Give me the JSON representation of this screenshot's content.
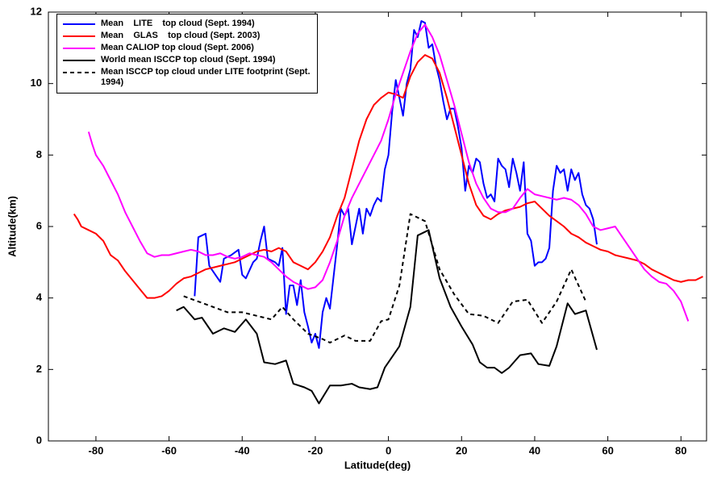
{
  "chart_data": {
    "type": "line",
    "xlabel": "Latitude(deg)",
    "ylabel": "Altitude(km)",
    "xlim": [
      -93,
      87
    ],
    "ylim": [
      0,
      12
    ],
    "xticks": [
      -80,
      -60,
      -40,
      -20,
      0,
      20,
      40,
      60,
      80
    ],
    "yticks": [
      0,
      2,
      4,
      6,
      8,
      10,
      12
    ],
    "legend": "upper-left",
    "series": [
      {
        "name": "Mean    LITE    top cloud (Sept. 1994)",
        "color": "#0000ff",
        "x": [
          -53,
          -52,
          -50,
          -49,
          -47,
          -46,
          -45,
          -43,
          -41,
          -40,
          -39,
          -37,
          -36,
          -35,
          -34,
          -33,
          -31,
          -30,
          -29,
          -28,
          -27,
          -26,
          -25,
          -24,
          -23,
          -22,
          -21,
          -20,
          -19,
          -18,
          -17,
          -16,
          -15,
          -14,
          -13,
          -12,
          -11,
          -10,
          -9,
          -8,
          -7,
          -6,
          -5,
          -4,
          -3,
          -2,
          -1,
          0,
          1,
          2,
          3,
          4,
          5,
          6,
          7,
          8,
          9,
          10,
          11,
          12,
          13,
          14,
          15,
          16,
          17,
          18,
          19,
          20,
          21,
          22,
          23,
          24,
          25,
          26,
          27,
          28,
          29,
          30,
          31,
          32,
          33,
          34,
          35,
          36,
          37,
          38,
          39,
          40,
          41,
          42,
          43,
          44,
          45,
          46,
          47,
          48,
          49,
          50,
          51,
          52,
          53,
          54,
          55,
          56,
          57
        ],
        "values": [
          4.05,
          5.7,
          5.8,
          4.9,
          4.6,
          4.45,
          5.1,
          5.2,
          5.35,
          4.65,
          4.55,
          5.0,
          5.1,
          5.6,
          6.0,
          5.1,
          5.0,
          4.9,
          5.4,
          3.55,
          4.35,
          4.35,
          3.8,
          4.5,
          3.6,
          3.2,
          2.75,
          3.0,
          2.6,
          3.6,
          4.0,
          3.7,
          4.6,
          5.5,
          6.5,
          6.3,
          6.5,
          5.5,
          6.0,
          6.5,
          5.8,
          6.5,
          6.3,
          6.6,
          6.8,
          6.7,
          7.6,
          8.0,
          9.2,
          10.1,
          9.6,
          9.1,
          10.0,
          10.4,
          11.5,
          11.3,
          11.75,
          11.7,
          11.0,
          11.1,
          10.5,
          10.1,
          9.5,
          9.0,
          9.3,
          9.3,
          8.8,
          8.2,
          7.0,
          7.7,
          7.5,
          7.9,
          7.8,
          7.2,
          6.8,
          6.9,
          6.7,
          7.9,
          7.7,
          7.6,
          7.1,
          7.9,
          7.5,
          7.0,
          7.8,
          5.8,
          5.6,
          4.9,
          5.0,
          5.0,
          5.1,
          5.4,
          7.0,
          7.7,
          7.5,
          7.6,
          7.0,
          7.6,
          7.3,
          7.5,
          6.9,
          6.6,
          6.5,
          6.2,
          5.5
        ]
      },
      {
        "name": "Mean    GLAS    top cloud (Sept. 2003)",
        "color": "#ff0000",
        "x": [
          -86,
          -85,
          -84,
          -82,
          -80,
          -78,
          -76,
          -74,
          -72,
          -70,
          -68,
          -66,
          -64,
          -62,
          -60,
          -58,
          -56,
          -54,
          -52,
          -50,
          -48,
          -46,
          -44,
          -42,
          -40,
          -38,
          -36,
          -34,
          -32,
          -30,
          -28,
          -26,
          -24,
          -22,
          -20,
          -18,
          -16,
          -14,
          -12,
          -10,
          -8,
          -6,
          -4,
          -2,
          0,
          2,
          4,
          6,
          8,
          10,
          12,
          14,
          16,
          18,
          20,
          22,
          24,
          26,
          28,
          30,
          32,
          34,
          36,
          38,
          40,
          42,
          44,
          46,
          48,
          50,
          52,
          54,
          56,
          58,
          60,
          62,
          64,
          66,
          68,
          70,
          72,
          74,
          76,
          78,
          80,
          82,
          84,
          86
        ],
        "values": [
          6.35,
          6.2,
          6.0,
          5.9,
          5.8,
          5.6,
          5.2,
          5.05,
          4.75,
          4.5,
          4.25,
          4.0,
          4.0,
          4.05,
          4.2,
          4.4,
          4.55,
          4.6,
          4.7,
          4.8,
          4.85,
          4.9,
          4.95,
          5.0,
          5.1,
          5.2,
          5.3,
          5.35,
          5.3,
          5.4,
          5.3,
          5.0,
          4.9,
          4.8,
          5.0,
          5.3,
          5.7,
          6.3,
          6.8,
          7.6,
          8.4,
          9.0,
          9.4,
          9.6,
          9.75,
          9.7,
          9.6,
          10.2,
          10.6,
          10.8,
          10.7,
          10.3,
          9.6,
          8.8,
          8.0,
          7.2,
          6.6,
          6.3,
          6.2,
          6.35,
          6.45,
          6.5,
          6.55,
          6.65,
          6.7,
          6.5,
          6.3,
          6.15,
          6.0,
          5.8,
          5.7,
          5.55,
          5.45,
          5.35,
          5.3,
          5.2,
          5.15,
          5.1,
          5.05,
          4.95,
          4.8,
          4.7,
          4.6,
          4.5,
          4.45,
          4.5,
          4.5,
          4.6
        ]
      },
      {
        "name": "Mean CALIOP top cloud (Sept. 2006)",
        "color": "#ff00ff",
        "x": [
          -82,
          -81,
          -80,
          -78,
          -76,
          -74,
          -72,
          -70,
          -68,
          -66,
          -64,
          -62,
          -60,
          -58,
          -56,
          -54,
          -52,
          -50,
          -48,
          -46,
          -44,
          -42,
          -40,
          -38,
          -36,
          -34,
          -32,
          -30,
          -28,
          -26,
          -24,
          -22,
          -20,
          -18,
          -16,
          -14,
          -12,
          -10,
          -8,
          -6,
          -4,
          -2,
          0,
          2,
          4,
          6,
          8,
          10,
          12,
          14,
          16,
          18,
          20,
          22,
          24,
          26,
          28,
          30,
          32,
          34,
          36,
          38,
          40,
          42,
          44,
          46,
          48,
          50,
          52,
          54,
          56,
          58,
          60,
          62,
          64,
          66,
          68,
          70,
          72,
          74,
          76,
          78,
          80,
          82
        ],
        "values": [
          8.65,
          8.3,
          8.0,
          7.7,
          7.3,
          6.9,
          6.4,
          6.0,
          5.6,
          5.25,
          5.15,
          5.2,
          5.2,
          5.25,
          5.3,
          5.35,
          5.3,
          5.2,
          5.2,
          5.25,
          5.15,
          5.1,
          5.15,
          5.25,
          5.2,
          5.15,
          5.0,
          4.8,
          4.6,
          4.45,
          4.35,
          4.25,
          4.3,
          4.5,
          5.0,
          5.6,
          6.3,
          6.8,
          7.2,
          7.6,
          8.0,
          8.4,
          9.0,
          9.7,
          10.3,
          10.9,
          11.4,
          11.65,
          11.3,
          10.8,
          10.1,
          9.4,
          8.6,
          7.8,
          7.2,
          6.8,
          6.5,
          6.4,
          6.4,
          6.5,
          6.8,
          7.05,
          6.9,
          6.85,
          6.8,
          6.75,
          6.8,
          6.75,
          6.6,
          6.35,
          6.0,
          5.9,
          5.95,
          6.0,
          5.7,
          5.4,
          5.1,
          4.8,
          4.6,
          4.45,
          4.4,
          4.2,
          3.9,
          3.35
        ]
      },
      {
        "name": "World mean ISCCP top cloud (Sept. 1994)",
        "color": "#000000",
        "x": [
          -58,
          -56,
          -53,
          -51,
          -48,
          -45,
          -42,
          -39,
          -36,
          -34,
          -31,
          -28,
          -26,
          -23,
          -21,
          -19,
          -16,
          -13,
          -10,
          -8,
          -5,
          -3,
          -1,
          1,
          3,
          6,
          8,
          11,
          14,
          17,
          20,
          23,
          25,
          27,
          29,
          31,
          33,
          36,
          39,
          41,
          44,
          46,
          49,
          51,
          54,
          57
        ],
        "values": [
          3.65,
          3.75,
          3.4,
          3.45,
          3.0,
          3.15,
          3.05,
          3.4,
          3.0,
          2.2,
          2.15,
          2.25,
          1.6,
          1.5,
          1.4,
          1.05,
          1.55,
          1.55,
          1.6,
          1.5,
          1.45,
          1.5,
          2.05,
          2.35,
          2.65,
          3.75,
          5.75,
          5.9,
          4.55,
          3.75,
          3.2,
          2.7,
          2.2,
          2.05,
          2.05,
          1.9,
          2.05,
          2.4,
          2.45,
          2.15,
          2.1,
          2.65,
          3.85,
          3.55,
          3.65,
          2.55
        ]
      },
      {
        "name": "Mean ISCCP top cloud under LITE footprint (Sept. 1994)",
        "color": "#000000",
        "dashed": true,
        "x": [
          -56,
          -52,
          -48,
          -44,
          -40,
          -36,
          -32,
          -29,
          -26,
          -22,
          -18,
          -16,
          -12,
          -9,
          -5,
          -2,
          0,
          3,
          6,
          10,
          14,
          18,
          22,
          26,
          30,
          34,
          38,
          42,
          46,
          50,
          54
        ],
        "values": [
          4.05,
          3.9,
          3.75,
          3.6,
          3.6,
          3.5,
          3.4,
          3.75,
          3.4,
          3.0,
          2.85,
          2.75,
          2.95,
          2.8,
          2.8,
          3.35,
          3.4,
          4.35,
          6.35,
          6.15,
          4.8,
          4.1,
          3.55,
          3.5,
          3.3,
          3.9,
          3.95,
          3.3,
          3.9,
          4.8,
          3.9
        ]
      }
    ]
  }
}
